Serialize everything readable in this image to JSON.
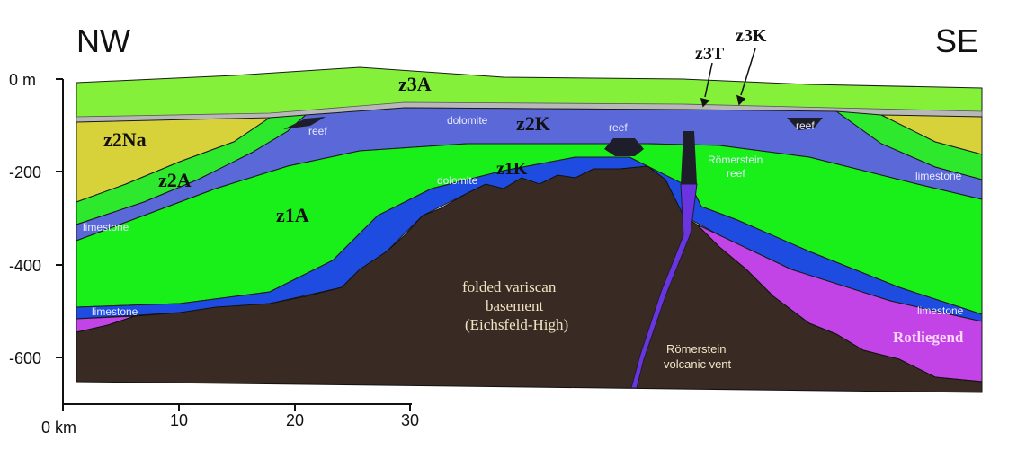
{
  "orientation": {
    "left": "NW",
    "right": "SE"
  },
  "depth_axis": {
    "ticks": [
      "0 m",
      "-200",
      "-400",
      "-600"
    ]
  },
  "distance_axis": {
    "ticks": [
      "0 km",
      "10",
      "20",
      "30"
    ]
  },
  "units": {
    "z3A": "z3A",
    "z3K": "z3K",
    "z3T": "z3T",
    "z2Na": "z2Na",
    "z2A": "z2A",
    "z2K": "z2K",
    "z1A": "z1A",
    "z1K": "z1K"
  },
  "notes": {
    "dolomite_upper": "dolomite",
    "dolomite_lower": "dolomite",
    "reef_nw": "reef",
    "reef_center": "reef",
    "reef_se": "reef",
    "romerstein_reef_1": "Römerstein",
    "romerstein_reef_2": "reef",
    "limestone_nw_upper": "limestone",
    "limestone_nw_lower": "limestone",
    "limestone_se_upper": "limestone",
    "limestone_se_lower": "limestone",
    "basement_1": "folded variscan",
    "basement_2": "basement",
    "basement_3": "(Eichsfeld-High)",
    "vent_1": "Römerstein",
    "vent_2": "volcanic vent",
    "rotliegend": "Rotliegend"
  },
  "colors": {
    "z3A": "#84f03a",
    "z3_band": "#b8b8b8",
    "z2Na": "#d7d23a",
    "z2A": "#2ee82e",
    "z2K": "#5a68d8",
    "z1A": "#19ef19",
    "z1K": "#1f4ce0",
    "basement": "#3a2a24",
    "reef_dark": "#1e1e2a",
    "rotliegend": "#c243e6",
    "vent": "#6a35e0"
  }
}
